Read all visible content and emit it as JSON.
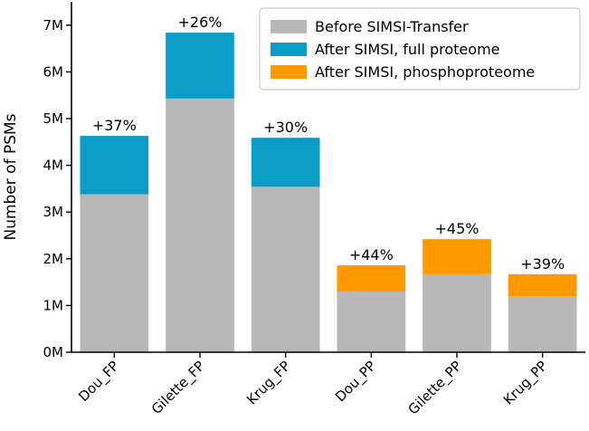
{
  "chart_data": {
    "type": "bar",
    "stacked": true,
    "title": "",
    "xlabel": "",
    "ylabel": "Number of PSMs",
    "ylim": [
      0,
      7500000
    ],
    "yticks": [
      0,
      1000000,
      2000000,
      3000000,
      4000000,
      5000000,
      6000000,
      7000000
    ],
    "ytick_labels": [
      "0M",
      "1M",
      "2M",
      "3M",
      "4M",
      "5M",
      "6M",
      "7M"
    ],
    "categories": [
      "Dou_FP",
      "Gilette_FP",
      "Krug_FP",
      "Dou_PP",
      "Gilette_PP",
      "Krug_PP"
    ],
    "series": [
      {
        "name": "Before SIMSI-Transfer",
        "color": "#b8b8b8",
        "values": [
          3380000,
          5430000,
          3540000,
          1300000,
          1670000,
          1200000
        ]
      },
      {
        "name": "After SIMSI, full proteome",
        "color": "#0c9cc8",
        "values": [
          1250000,
          1410000,
          1050000,
          0,
          0,
          0
        ]
      },
      {
        "name": "After SIMSI, phosphoproteome",
        "color": "#ff9900",
        "values": [
          0,
          0,
          0,
          560000,
          750000,
          470000
        ]
      }
    ],
    "data_labels": [
      "+37%",
      "+26%",
      "+30%",
      "+44%",
      "+45%",
      "+39%"
    ],
    "legend_position": "top-right",
    "grid": false
  }
}
